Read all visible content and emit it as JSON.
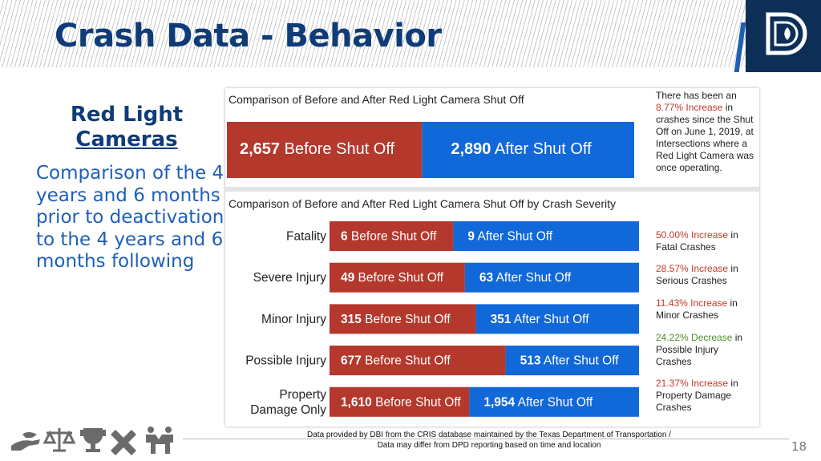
{
  "header": {
    "title": "Crash Data - Behavior"
  },
  "sidebar": {
    "heading_line1": "Red Light",
    "heading_line2": "Cameras",
    "body": "Comparison of the 4 years and 6 months prior to deactivation to the 4 years and 6 months following"
  },
  "chart_data": [
    {
      "type": "bar",
      "stacked": true,
      "orientation": "horizontal",
      "title": "Comparison of Before and After Red Light Camera Shut Off",
      "categories": [
        ""
      ],
      "series": [
        {
          "name": "Before Shut Off",
          "values": [
            2657
          ],
          "labels": [
            "2,657"
          ]
        },
        {
          "name": "After Shut Off",
          "values": [
            2890
          ],
          "labels": [
            "2,890"
          ]
        }
      ]
    },
    {
      "type": "bar",
      "stacked": true,
      "orientation": "horizontal",
      "title": "Comparison of Before and After Red Light Camera Shut Off by Crash Severity",
      "categories": [
        "Fatality",
        "Severe Injury",
        "Minor Injury",
        "Possible Injury",
        "Property Damage Only"
      ],
      "series": [
        {
          "name": "Before Shut Off",
          "values": [
            6,
            49,
            315,
            677,
            1610
          ],
          "labels": [
            "6",
            "49",
            "315",
            "677",
            "1,610"
          ]
        },
        {
          "name": "After Shut Off",
          "values": [
            9,
            63,
            351,
            513,
            1954
          ],
          "labels": [
            "9",
            "63",
            "351",
            "513",
            "1,954"
          ]
        }
      ]
    }
  ],
  "notes": {
    "total_line1": "There has been an",
    "total_pct": "8.77% Increase",
    "total_in": " in",
    "total_rest": "crashes since the Shut Off on June 1, 2019, at Intersections where a Red Light Camera was once operating.",
    "rows": [
      {
        "pct": "50.00% Increase",
        "rest": "Fatal Crashes",
        "tone": "red"
      },
      {
        "pct": "28.57% Increase",
        "rest": "Serious Crashes",
        "tone": "red"
      },
      {
        "pct": "11.43% Increase",
        "rest": "Minor Crashes",
        "tone": "red"
      },
      {
        "pct": "24.22% Decrease",
        "rest": "Possible Injury Crashes",
        "tone": "green"
      },
      {
        "pct": "21.37% Increase",
        "rest": "Property Damage Crashes",
        "tone": "red"
      }
    ],
    "in_word": " in"
  },
  "footer": {
    "source_line1": "Data provided by DBI from the CRIS database maintained by the Texas Department of Transportation /",
    "source_line2": "Data may differ from DPD reporting based on time and location",
    "page_number": "18"
  },
  "colors": {
    "title": "#0f3c78",
    "body_text": "#1f5fb8",
    "before_bar": "#b5382d",
    "after_bar": "#1168d9",
    "increase_text": "#c0392b",
    "decrease_text": "#4c8f2d"
  },
  "icons": [
    "hand-icon",
    "scales-icon",
    "trophy-icon",
    "puzzle-icon",
    "people-icon"
  ]
}
